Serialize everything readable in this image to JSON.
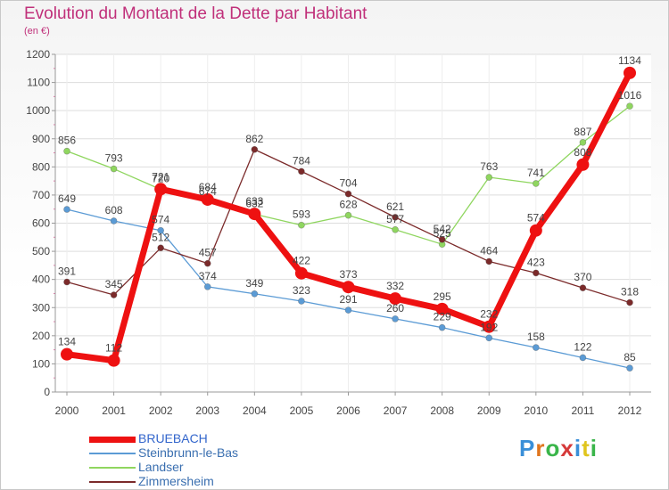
{
  "chart_data": {
    "type": "line",
    "title": "Evolution du Montant de la Dette par Habitant",
    "unit_label": "(en €)",
    "x": [
      "2000",
      "2001",
      "2002",
      "2003",
      "2004",
      "2005",
      "2006",
      "2007",
      "2008",
      "2009",
      "2010",
      "2011",
      "2012"
    ],
    "ylim": [
      0,
      1200
    ],
    "yticks": [
      0,
      100,
      200,
      300,
      400,
      500,
      600,
      700,
      800,
      900,
      1000,
      1100,
      1200
    ],
    "grid": true,
    "legend_position": "bottom-left",
    "series": [
      {
        "name": "BRUEBACH",
        "color": "#ee1111",
        "width": 7,
        "marker": 7,
        "values": [
          134,
          112,
          721,
          684,
          633,
          422,
          373,
          332,
          295,
          232,
          574,
          808,
          1134
        ]
      },
      {
        "name": "Steinbrunn-le-Bas",
        "color": "#5b9bd5",
        "width": 1.3,
        "marker": 3.5,
        "values": [
          649,
          608,
          574,
          374,
          349,
          323,
          291,
          260,
          229,
          192,
          158,
          122,
          85
        ]
      },
      {
        "name": "Landser",
        "color": "#8fd65f",
        "width": 1.3,
        "marker": 3.5,
        "values": [
          856,
          793,
          720,
          674,
          632,
          593,
          628,
          577,
          525,
          763,
          741,
          887,
          1016
        ]
      },
      {
        "name": "Zimmersheim",
        "color": "#7b2a2a",
        "width": 1.3,
        "marker": 3.5,
        "values": [
          391,
          345,
          512,
          457,
          862,
          784,
          704,
          621,
          542,
          464,
          423,
          370,
          318
        ]
      }
    ]
  },
  "brand": {
    "letters": [
      "P",
      "r",
      "o",
      "x",
      "i",
      "t",
      "i"
    ],
    "colors": [
      "#3a8fd8",
      "#e0761e",
      "#3ab54a",
      "#d63a3a",
      "#3a8fd8",
      "#e0c51e",
      "#3ab54a"
    ]
  }
}
